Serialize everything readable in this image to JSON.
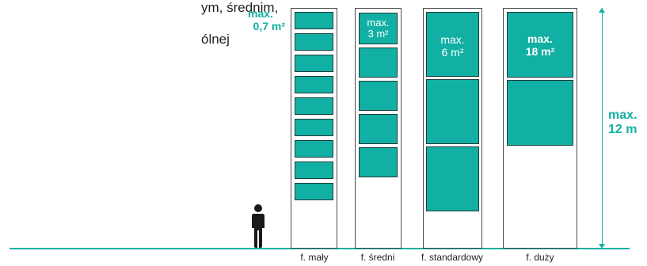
{
  "text": {
    "line1": "ym, średnim,",
    "line2": "ólnej"
  },
  "formats": [
    {
      "footer": "f. mały",
      "label_line1": "max.",
      "label_line2": "0,7 m²",
      "panels": 9
    },
    {
      "footer": "f. średni",
      "label_line1": "max.",
      "label_line2": "3 m²",
      "panels": 4
    },
    {
      "footer": "f. standardowy",
      "label_line1": "max.",
      "label_line2": "6 m²",
      "panels": 3
    },
    {
      "footer": "f. duży",
      "label_line1": "max.",
      "label_line2": "18 m²",
      "panels": 2
    }
  ],
  "height_label": {
    "line1": "max.",
    "line2": "12 m"
  },
  "icons": {
    "person": "person-silhouette-icon"
  },
  "colors": {
    "accent": "#12b0a4",
    "ground": "#12b0a4",
    "panel_border": "#1f3d3a"
  }
}
